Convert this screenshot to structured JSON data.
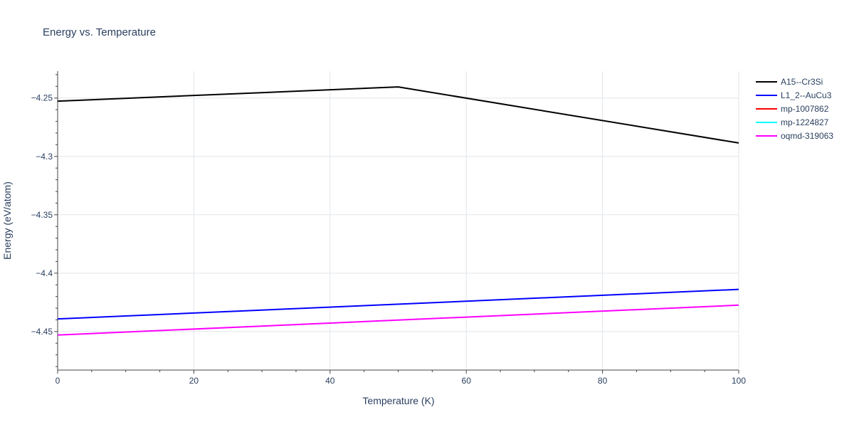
{
  "chart_data": {
    "type": "line",
    "title": "Energy vs. Temperature",
    "xlabel": "Temperature (K)",
    "ylabel": "Energy (eV/atom)",
    "xlim": [
      0,
      100
    ],
    "ylim": [
      -4.483,
      -4.227
    ],
    "xticks": [
      0,
      20,
      40,
      60,
      80,
      100
    ],
    "xtick_labels": [
      "0",
      "20",
      "40",
      "60",
      "80",
      "100"
    ],
    "yticks": [
      -4.25,
      -4.3,
      -4.35,
      -4.4,
      -4.45
    ],
    "ytick_labels": [
      "−4.25",
      "−4.3",
      "−4.35",
      "−4.4",
      "−4.45"
    ],
    "grid": true,
    "legend_position": "top-right",
    "series": [
      {
        "name": "A15--Cr3Si",
        "color": "#000000",
        "x": [
          0,
          50,
          100
        ],
        "y": [
          -4.2527,
          -4.2405,
          -4.2885
        ]
      },
      {
        "name": "L1_2--AuCu3",
        "color": "#0000ff",
        "x": [
          0,
          100
        ],
        "y": [
          -4.4392,
          -4.4139
        ]
      },
      {
        "name": "mp-1007862",
        "color": "#ff0000",
        "x": [],
        "y": []
      },
      {
        "name": "mp-1224827",
        "color": "#00ffff",
        "x": [],
        "y": []
      },
      {
        "name": "oqmd-319063",
        "color": "#ff00ff",
        "x": [
          0,
          100
        ],
        "y": [
          -4.453,
          -4.4274
        ]
      }
    ]
  }
}
